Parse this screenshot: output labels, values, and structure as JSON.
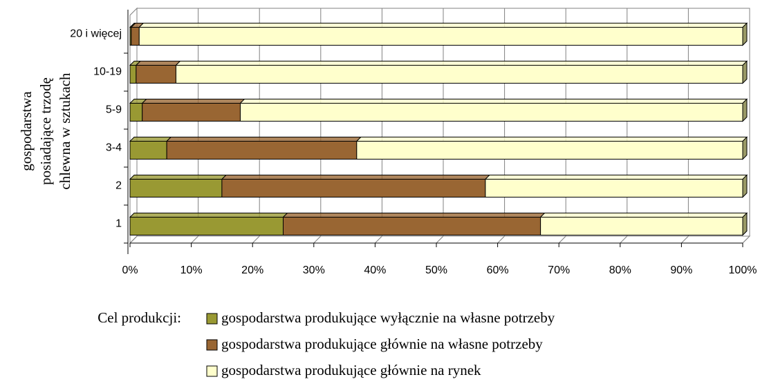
{
  "chart_data": {
    "type": "stacked_barh",
    "y_label": [
      "gospodarstwa",
      "posiadające trzodę",
      "chlewna w sztukach"
    ],
    "categories": [
      "1",
      "2",
      "3-4",
      "5-9",
      "10-19",
      "20 i więcej"
    ],
    "series": [
      {
        "name": "gospodarstwa produkujące wyłącznie na własne potrzeby",
        "color": "#999933",
        "values": [
          25,
          15,
          6,
          2,
          1,
          0.2
        ]
      },
      {
        "name": "gospodarstwa produkujące głównie na własne potrzeby",
        "color": "#996633",
        "values": [
          42,
          43,
          31,
          16,
          6.5,
          1.3
        ]
      },
      {
        "name": "gospodarstwa produkujące głównie na rynek",
        "color": "#ffffcc",
        "values": [
          33,
          42,
          63,
          82,
          92.5,
          98.5
        ]
      }
    ],
    "xlim": [
      0,
      100
    ],
    "xticks": [
      {
        "value": 0,
        "label": "0%"
      },
      {
        "value": 10,
        "label": "10%"
      },
      {
        "value": 20,
        "label": "20%"
      },
      {
        "value": 30,
        "label": "30%"
      },
      {
        "value": 40,
        "label": "40%"
      },
      {
        "value": 50,
        "label": "50%"
      },
      {
        "value": 60,
        "label": "60%"
      },
      {
        "value": 70,
        "label": "70%"
      },
      {
        "value": 80,
        "label": "80%"
      },
      {
        "value": 90,
        "label": "90%"
      },
      {
        "value": 100,
        "label": "100%"
      }
    ],
    "grid": true,
    "legend_title": "Cel produkcji:",
    "legend": "bottom"
  }
}
